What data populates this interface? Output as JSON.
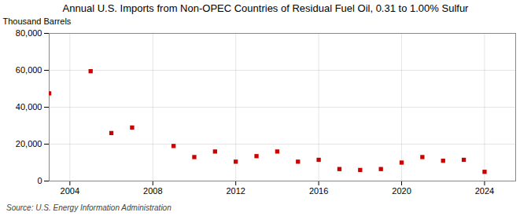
{
  "chart_data": {
    "type": "scatter",
    "title": "Annual U.S. Imports from Non-OPEC Countries of Residual Fuel Oil, 0.31 to 1.00% Sulfur",
    "ylabel": "Thousand Barrels",
    "source": "Source: U.S. Energy Information Administration",
    "x": [
      2003,
      2005,
      2006,
      2007,
      2009,
      2010,
      2011,
      2012,
      2013,
      2014,
      2015,
      2016,
      2017,
      2018,
      2019,
      2020,
      2021,
      2022,
      2023,
      2024
    ],
    "values": [
      47500,
      59500,
      26000,
      29000,
      19000,
      13000,
      16000,
      10500,
      13500,
      16000,
      10500,
      11500,
      6500,
      6000,
      6500,
      10000,
      13000,
      11000,
      11500,
      5000
    ],
    "color": "#cc0000",
    "marker": "square",
    "xlim": [
      2003.0,
      2025.5
    ],
    "xticks": [
      2004,
      2008,
      2012,
      2016,
      2020,
      2024
    ],
    "ylim": [
      0,
      80000
    ],
    "yticks": [
      0,
      {
        "value": 20000,
        "label": "20,000"
      },
      {
        "value": 40000,
        "label": "40,000"
      },
      {
        "value": 60000,
        "label": "60,000"
      },
      {
        "value": 80000,
        "label": "80,000"
      }
    ],
    "grid": true
  }
}
